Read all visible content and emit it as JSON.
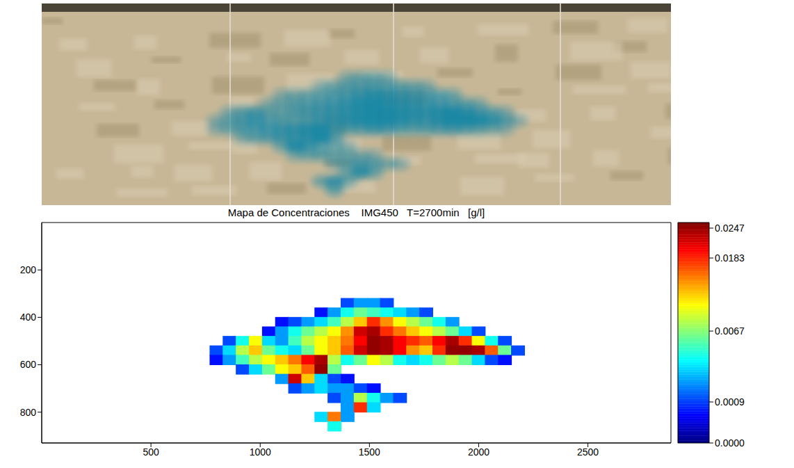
{
  "chart_data": {
    "type": "heatmap",
    "title": "Mapa de Concentraciones    IMG450   T=2700min   [g/l]",
    "xlim": [
      0,
      2880
    ],
    "xticks": [
      500,
      1000,
      1500,
      2000,
      2500
    ],
    "ylim": [
      0,
      930
    ],
    "yticks": [
      200,
      400,
      600,
      800
    ],
    "cells": {
      "x": [
        800,
        860,
        920,
        980,
        1040,
        1100,
        1160,
        1220,
        1280,
        1340,
        1400,
        1460,
        1520,
        1580,
        1640,
        1700,
        1760,
        1820,
        1880,
        1940,
        2000,
        2060,
        2120,
        2180
      ],
      "y": [
        340,
        380,
        420,
        460,
        500,
        540,
        580,
        620,
        660,
        700,
        740,
        780,
        820,
        860
      ],
      "values": [
        [
          null,
          null,
          null,
          null,
          null,
          null,
          null,
          null,
          null,
          null,
          0.001,
          0.002,
          0.002,
          0.001,
          null,
          null,
          null,
          null,
          null,
          null,
          null,
          null,
          null,
          null
        ],
        [
          null,
          null,
          null,
          null,
          null,
          null,
          null,
          null,
          0.0005,
          0.002,
          0.004,
          0.006,
          0.005,
          0.004,
          0.003,
          0.002,
          0.001,
          null,
          null,
          null,
          null,
          null,
          null,
          null
        ],
        [
          null,
          null,
          null,
          null,
          null,
          0.0005,
          0.001,
          0.002,
          0.003,
          0.005,
          0.008,
          0.012,
          0.018,
          0.014,
          0.01,
          0.008,
          0.006,
          0.004,
          0.002,
          null,
          null,
          null,
          null,
          null
        ],
        [
          null,
          null,
          null,
          null,
          0.0005,
          0.002,
          0.004,
          0.006,
          0.008,
          0.01,
          0.014,
          0.022,
          0.024,
          0.018,
          0.015,
          0.012,
          0.01,
          0.008,
          0.006,
          0.003,
          0.001,
          null,
          null,
          null
        ],
        [
          null,
          0.001,
          0.004,
          0.01,
          0.003,
          0.002,
          0.005,
          0.008,
          0.01,
          0.012,
          0.015,
          0.02,
          0.025,
          0.024,
          0.02,
          0.018,
          0.016,
          0.02,
          0.024,
          0.018,
          0.01,
          0.004,
          0.001,
          null
        ],
        [
          0.001,
          0.003,
          0.008,
          0.012,
          0.006,
          0.004,
          0.003,
          0.006,
          0.01,
          0.012,
          0.016,
          0.022,
          0.025,
          0.024,
          0.02,
          0.014,
          0.012,
          0.018,
          0.025,
          0.025,
          0.024,
          0.016,
          0.006,
          0.001
        ],
        [
          0.0005,
          0.002,
          0.005,
          0.008,
          0.01,
          0.012,
          0.015,
          0.02,
          0.024,
          0.008,
          0.004,
          0.006,
          0.01,
          0.008,
          0.004,
          0.003,
          0.004,
          0.006,
          0.008,
          0.006,
          0.003,
          0.001,
          0.0005,
          null
        ],
        [
          null,
          null,
          0.001,
          0.003,
          0.006,
          0.01,
          0.012,
          0.016,
          0.025,
          0.006,
          null,
          null,
          null,
          null,
          null,
          null,
          null,
          null,
          null,
          null,
          null,
          null,
          null,
          null
        ],
        [
          null,
          null,
          null,
          null,
          null,
          0.002,
          0.022,
          0.012,
          0.003,
          0.001,
          0.0005,
          null,
          null,
          null,
          null,
          null,
          null,
          null,
          null,
          null,
          null,
          null,
          null,
          null
        ],
        [
          null,
          null,
          null,
          null,
          null,
          null,
          0.001,
          0.002,
          0.003,
          0.002,
          0.002,
          0.001,
          0.0005,
          null,
          null,
          null,
          null,
          null,
          null,
          null,
          null,
          null,
          null,
          null
        ],
        [
          null,
          null,
          null,
          null,
          null,
          null,
          null,
          null,
          null,
          0.001,
          0.002,
          0.008,
          0.004,
          0.002,
          0.001,
          null,
          null,
          null,
          null,
          null,
          null,
          null,
          null,
          null
        ],
        [
          null,
          null,
          null,
          null,
          null,
          null,
          null,
          null,
          null,
          null,
          0.002,
          0.018,
          0.003,
          null,
          null,
          null,
          null,
          null,
          null,
          null,
          null,
          null,
          null,
          null
        ],
        [
          null,
          null,
          null,
          null,
          null,
          null,
          null,
          null,
          0.003,
          0.015,
          0.002,
          null,
          null,
          null,
          null,
          null,
          null,
          null,
          null,
          null,
          null,
          null,
          null,
          null
        ],
        [
          null,
          null,
          null,
          null,
          null,
          null,
          null,
          null,
          null,
          0.004,
          null,
          null,
          null,
          null,
          null,
          null,
          null,
          null,
          null,
          null,
          null,
          null,
          null,
          null
        ]
      ]
    },
    "colorbar": {
      "range": [
        0,
        0.026
      ],
      "ticks": [
        {
          "value": 0,
          "label": "0.0000"
        },
        0.0009,
        0.0067,
        0.0183,
        0.0247
      ]
    }
  }
}
